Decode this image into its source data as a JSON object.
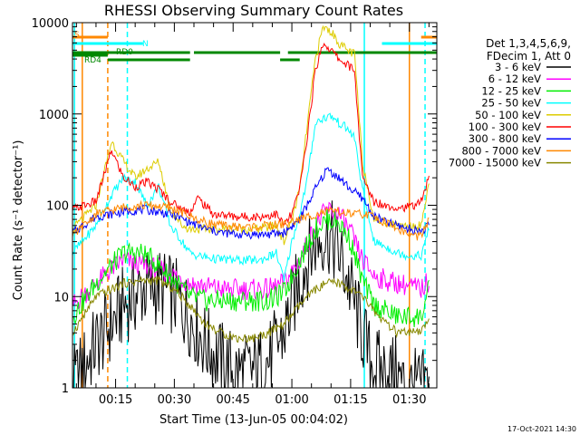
{
  "chart_data": {
    "type": "line",
    "title": "RHESSI Observing Summary Count Rates",
    "xlabel": "Start Time (13-Jun-05 00:04:02)",
    "ylabel": "Count Rate (s⁻¹ detector⁻¹)",
    "yscale": "log",
    "ylim": [
      1,
      10000
    ],
    "xlim_minutes": [
      4,
      97
    ],
    "x_ticks": [
      "00:15",
      "00:30",
      "00:45",
      "01:00",
      "01:15",
      "01:30"
    ],
    "y_ticks": [
      "1",
      "10",
      "100",
      "1000",
      "10000"
    ],
    "legend_header": [
      "Det 1,3,4,5,6,9,",
      "FDecim 1, Att 0"
    ],
    "legend_position": "right",
    "footer": "17-Oct-2021 14:30",
    "series": [
      {
        "name": "3 - 6 keV",
        "color": "#000000",
        "x": [
          4,
          10,
          14,
          17,
          22,
          26,
          30,
          34,
          38,
          42,
          46,
          50,
          54,
          58,
          60,
          63,
          66,
          69,
          72,
          75,
          78,
          80,
          83,
          86,
          89,
          92,
          94,
          95
        ],
        "values": [
          1,
          3,
          5,
          8,
          12,
          13,
          10,
          6,
          3,
          2,
          1.5,
          1.5,
          2,
          4,
          8,
          20,
          40,
          50,
          30,
          12,
          4,
          2,
          1.5,
          1.5,
          1,
          1,
          1,
          1
        ]
      },
      {
        "name": "6 - 12 keV",
        "color": "#ff00ff",
        "x": [
          4,
          10,
          14,
          17,
          22,
          26,
          30,
          34,
          38,
          42,
          46,
          50,
          54,
          58,
          62,
          66,
          69,
          72,
          75,
          78,
          81,
          84,
          87,
          90,
          93,
          95
        ],
        "values": [
          8,
          14,
          20,
          25,
          22,
          20,
          17,
          14,
          13,
          12,
          12,
          12,
          12,
          14,
          25,
          60,
          90,
          80,
          50,
          25,
          17,
          15,
          14,
          13,
          12,
          15
        ]
      },
      {
        "name": "12 - 25 keV",
        "color": "#00ee00",
        "x": [
          4,
          10,
          14,
          17,
          22,
          26,
          30,
          34,
          38,
          42,
          46,
          50,
          54,
          58,
          62,
          66,
          69,
          72,
          75,
          78,
          81,
          84,
          87,
          90,
          93,
          95
        ],
        "values": [
          6,
          14,
          22,
          30,
          30,
          22,
          15,
          10,
          9,
          9,
          9,
          9,
          9,
          11,
          25,
          55,
          70,
          65,
          40,
          15,
          8,
          7,
          6,
          6,
          6,
          12
        ]
      },
      {
        "name": "25 - 50 keV",
        "color": "#00ffff",
        "x": [
          4,
          10,
          14,
          17,
          20,
          23,
          26,
          29,
          32,
          34,
          36,
          40,
          46,
          52,
          56,
          58,
          60,
          62,
          64,
          66,
          68,
          70,
          72,
          74,
          76,
          78,
          81,
          84,
          87,
          90,
          93,
          95
        ],
        "values": [
          30,
          60,
          130,
          200,
          180,
          100,
          160,
          60,
          40,
          30,
          28,
          26,
          25,
          25,
          30,
          15,
          40,
          80,
          200,
          800,
          900,
          950,
          800,
          700,
          550,
          150,
          40,
          35,
          30,
          28,
          28,
          55
        ]
      },
      {
        "name": "50 - 100 keV",
        "color": "#ddcc00",
        "x": [
          4,
          10,
          14,
          17,
          20,
          23,
          26,
          29,
          32,
          34,
          36,
          40,
          46,
          52,
          56,
          58,
          60,
          62,
          64,
          66,
          68,
          70,
          72,
          74,
          76,
          78,
          81,
          84,
          87,
          90,
          93,
          95
        ],
        "values": [
          55,
          100,
          500,
          300,
          200,
          250,
          300,
          90,
          60,
          55,
          55,
          55,
          55,
          55,
          60,
          40,
          70,
          150,
          800,
          4000,
          9000,
          8000,
          6000,
          5000,
          4500,
          300,
          70,
          65,
          60,
          60,
          60,
          180
        ]
      },
      {
        "name": "100 - 300 keV",
        "color": "#ff0000",
        "x": [
          4,
          10,
          14,
          17,
          20,
          23,
          26,
          29,
          32,
          34,
          36,
          40,
          46,
          52,
          56,
          58,
          60,
          62,
          64,
          66,
          68,
          70,
          72,
          74,
          76,
          78,
          81,
          84,
          87,
          90,
          93,
          95
        ],
        "values": [
          90,
          110,
          400,
          200,
          160,
          180,
          150,
          110,
          90,
          85,
          120,
          80,
          75,
          75,
          80,
          60,
          80,
          150,
          600,
          3000,
          6000,
          5000,
          4000,
          3500,
          3000,
          200,
          110,
          100,
          95,
          95,
          110,
          200
        ]
      },
      {
        "name": "300 - 800 keV",
        "color": "#0000ff",
        "x": [
          4,
          10,
          14,
          17,
          22,
          26,
          30,
          34,
          38,
          42,
          46,
          50,
          54,
          58,
          62,
          66,
          69,
          72,
          75,
          78,
          81,
          84,
          87,
          90,
          93,
          95
        ],
        "values": [
          50,
          75,
          80,
          85,
          90,
          85,
          78,
          65,
          55,
          50,
          48,
          48,
          48,
          50,
          70,
          150,
          250,
          200,
          150,
          120,
          75,
          65,
          60,
          55,
          52,
          60
        ]
      },
      {
        "name": "800 - 7000 keV",
        "color": "#ff8800",
        "x": [
          4,
          10,
          14,
          17,
          22,
          26,
          30,
          34,
          38,
          42,
          46,
          50,
          54,
          58,
          62,
          66,
          69,
          72,
          75,
          78,
          81,
          84,
          87,
          90,
          93,
          95
        ],
        "values": [
          45,
          80,
          88,
          95,
          100,
          98,
          90,
          75,
          65,
          60,
          58,
          58,
          60,
          62,
          70,
          80,
          85,
          85,
          80,
          80,
          75,
          65,
          55,
          48,
          45,
          70
        ]
      },
      {
        "name": "7000 - 15000 keV",
        "color": "#888800",
        "x": [
          4,
          10,
          14,
          17,
          22,
          26,
          30,
          34,
          38,
          42,
          46,
          50,
          54,
          58,
          62,
          66,
          69,
          72,
          75,
          78,
          81,
          84,
          87,
          90,
          93,
          95
        ],
        "values": [
          4,
          10,
          12,
          14,
          15,
          15,
          12,
          8,
          5,
          4,
          3.5,
          3.5,
          4,
          5,
          8,
          12,
          14,
          14,
          12,
          10,
          7,
          5,
          4,
          4,
          4,
          6
        ]
      }
    ],
    "state_bars": [
      {
        "label": "S",
        "color": "#ff8800",
        "level": 5,
        "segments": [
          [
            4,
            13
          ],
          [
            93,
            97
          ]
        ]
      },
      {
        "label": "N",
        "color": "#00ffff",
        "level": 4,
        "segments": [
          [
            4,
            22
          ],
          [
            83,
            97
          ]
        ]
      },
      {
        "label": "RD0",
        "color": "#008800",
        "level": 3,
        "segments": [
          [
            4,
            13
          ],
          [
            13,
            34
          ],
          [
            35,
            57
          ],
          [
            59,
            97
          ]
        ]
      },
      {
        "label": "RD4",
        "color": "#008800",
        "level": 2,
        "segments": []
      }
    ],
    "vlines": [
      {
        "x": 4.5,
        "color": "#00ffff",
        "style": "solid"
      },
      {
        "x": 6.5,
        "color": "#ff8800",
        "style": "solid"
      },
      {
        "x": 13,
        "color": "#ff8800",
        "style": "dashed"
      },
      {
        "x": 18,
        "color": "#00ffff",
        "style": "dashed"
      },
      {
        "x": 78.5,
        "color": "#00ffff",
        "style": "solid"
      },
      {
        "x": 90,
        "color": "#ff8800",
        "style": "solid"
      },
      {
        "x": 94,
        "color": "#00ffff",
        "style": "dashed"
      }
    ]
  }
}
